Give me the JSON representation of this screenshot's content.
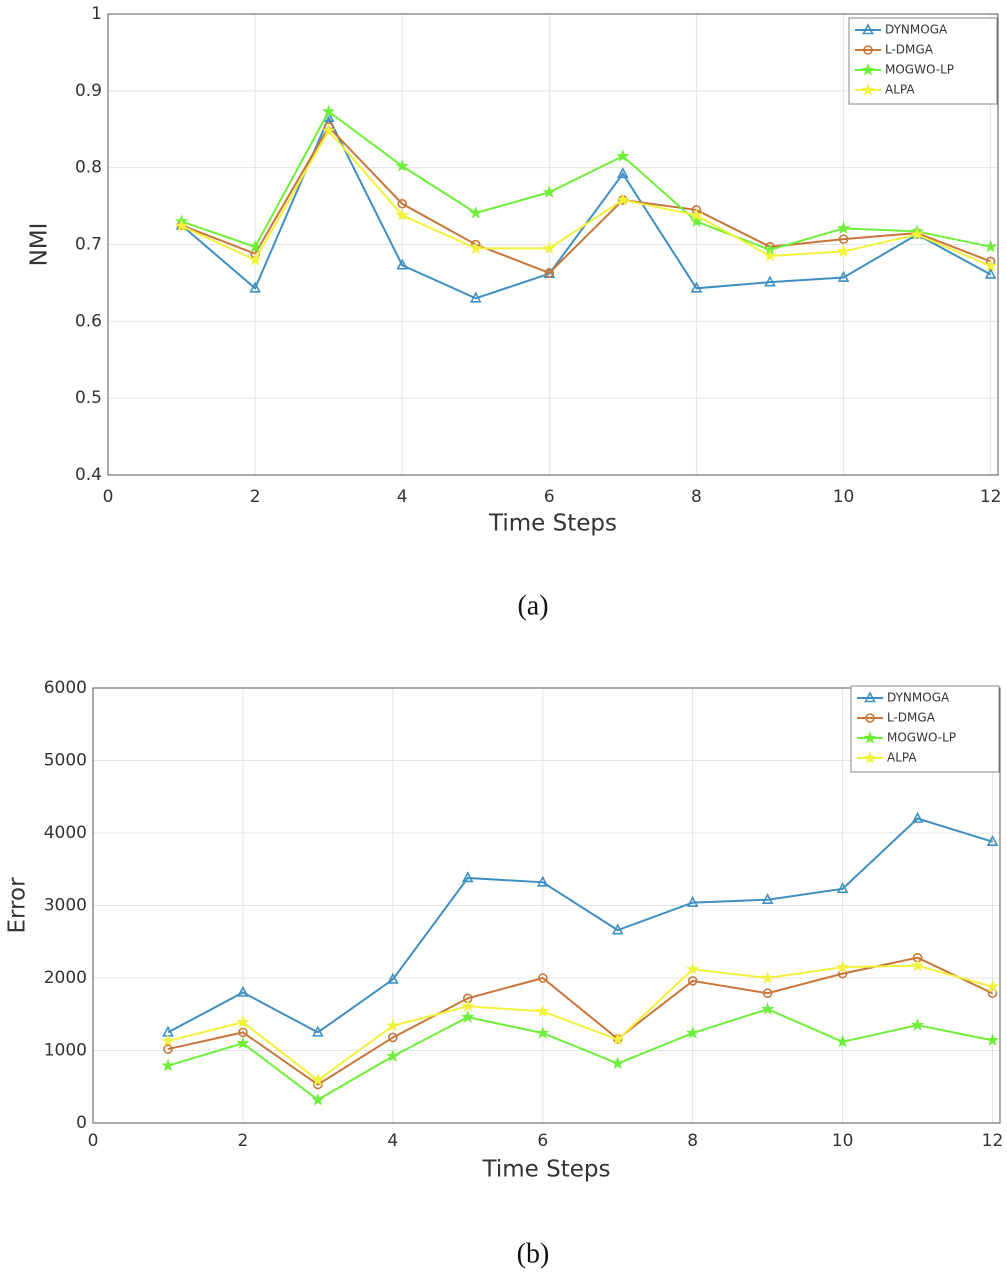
{
  "chart_data": [
    {
      "type": "line",
      "caption": "(a)",
      "xlabel": "Time Steps",
      "ylabel": "NMI",
      "x": [
        1,
        2,
        3,
        4,
        5,
        6,
        7,
        8,
        9,
        10,
        11,
        12
      ],
      "xlim": [
        0,
        12.1
      ],
      "xticks": [
        0,
        2,
        4,
        6,
        8,
        10,
        12
      ],
      "ylim": [
        0.4,
        1
      ],
      "yticks": [
        0.4,
        0.5,
        0.6,
        0.7,
        0.8,
        0.9,
        1
      ],
      "grid": true,
      "legend": "upper right",
      "series": [
        {
          "name": "DYNMOGA",
          "color": "#3f8fc0",
          "marker": "triangle",
          "values": [
            0.725,
            0.643,
            0.865,
            0.673,
            0.63,
            0.662,
            0.792,
            0.643,
            0.651,
            0.657,
            0.713,
            0.661
          ]
        },
        {
          "name": "L-DMGA",
          "color": "#c8763a",
          "marker": "circle",
          "values": [
            0.725,
            0.688,
            0.853,
            0.753,
            0.7,
            0.663,
            0.758,
            0.745,
            0.697,
            0.707,
            0.715,
            0.678
          ]
        },
        {
          "name": "MOGWO-LP",
          "color": "#6ef03a",
          "marker": "star",
          "values": [
            0.73,
            0.697,
            0.873,
            0.802,
            0.741,
            0.768,
            0.815,
            0.73,
            0.693,
            0.721,
            0.717,
            0.697
          ]
        },
        {
          "name": "ALPA",
          "color": "#f2f23c",
          "marker": "star",
          "values": [
            0.724,
            0.68,
            0.848,
            0.738,
            0.695,
            0.695,
            0.758,
            0.738,
            0.685,
            0.691,
            0.713,
            0.672
          ]
        }
      ]
    },
    {
      "type": "line",
      "caption": "(b)",
      "xlabel": "Time Steps",
      "ylabel": "Error",
      "x": [
        1,
        2,
        3,
        4,
        5,
        6,
        7,
        8,
        9,
        10,
        11,
        12
      ],
      "xlim": [
        0,
        12.1
      ],
      "xticks": [
        0,
        2,
        4,
        6,
        8,
        10,
        12
      ],
      "ylim": [
        0,
        6000
      ],
      "yticks": [
        0,
        1000,
        2000,
        3000,
        4000,
        5000,
        6000
      ],
      "grid": true,
      "legend": "upper right",
      "series": [
        {
          "name": "DYNMOGA",
          "color": "#3f8fc0",
          "marker": "triangle",
          "values": [
            1250,
            1800,
            1250,
            1980,
            3380,
            3320,
            2660,
            3040,
            3080,
            3230,
            4200,
            3880
          ]
        },
        {
          "name": "L-DMGA",
          "color": "#c8763a",
          "marker": "circle",
          "values": [
            1020,
            1250,
            530,
            1180,
            1720,
            2000,
            1160,
            1960,
            1790,
            2060,
            2280,
            1790
          ]
        },
        {
          "name": "MOGWO-LP",
          "color": "#6ef03a",
          "marker": "star",
          "values": [
            790,
            1100,
            320,
            920,
            1460,
            1240,
            820,
            1240,
            1570,
            1120,
            1350,
            1140
          ]
        },
        {
          "name": "ALPA",
          "color": "#f2f23c",
          "marker": "star",
          "values": [
            1130,
            1390,
            590,
            1340,
            1610,
            1540,
            1150,
            2120,
            2000,
            2150,
            2170,
            1880
          ]
        }
      ]
    }
  ]
}
